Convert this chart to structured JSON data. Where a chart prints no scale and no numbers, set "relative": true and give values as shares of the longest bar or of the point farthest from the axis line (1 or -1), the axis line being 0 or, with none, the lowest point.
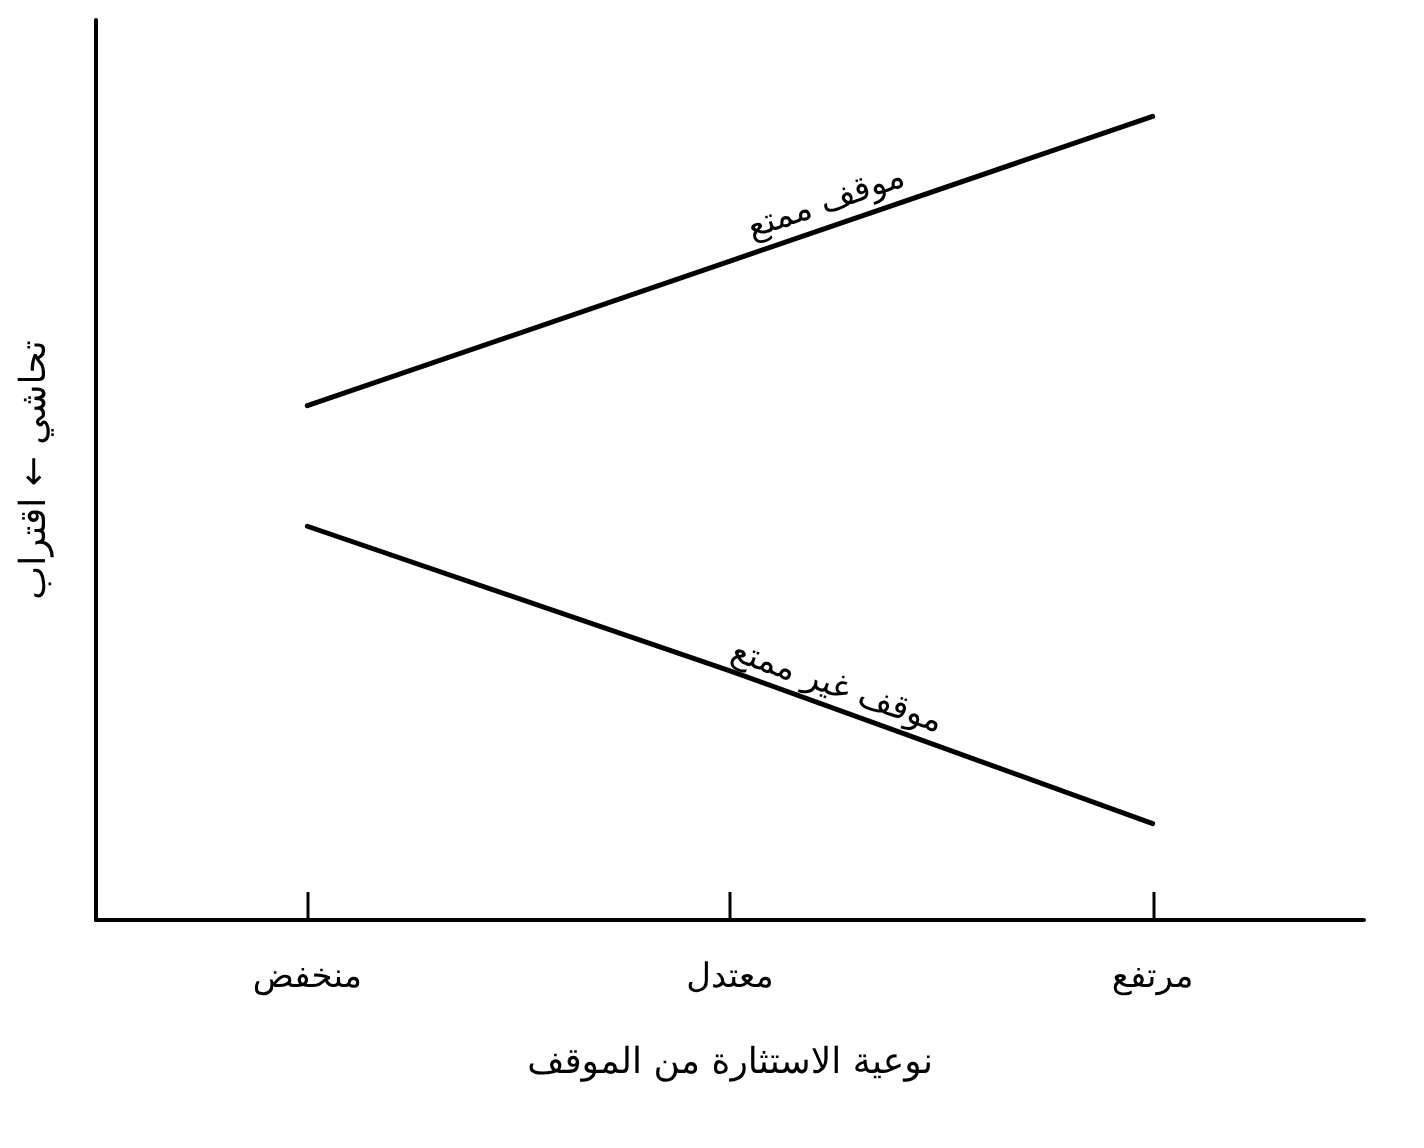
{
  "chart_data": {
    "type": "line",
    "relative": true,
    "xlabel": "نوعية الاستثارة من الموقف",
    "ylabel": "تحاشي ← اقتراب",
    "categories": [
      "منخفض",
      "معتدل",
      "مرتفع"
    ],
    "grid": false,
    "legend": false,
    "marker": "none",
    "line_style": "solid",
    "series": [
      {
        "name": "موقف ممتع",
        "color": "#000000",
        "values": [
          0.64,
          0.82,
          1
        ]
      },
      {
        "name": "موقف غير ممتع",
        "color": "#000000",
        "values": [
          0.49,
          0.31,
          0.12
        ]
      }
    ]
  }
}
